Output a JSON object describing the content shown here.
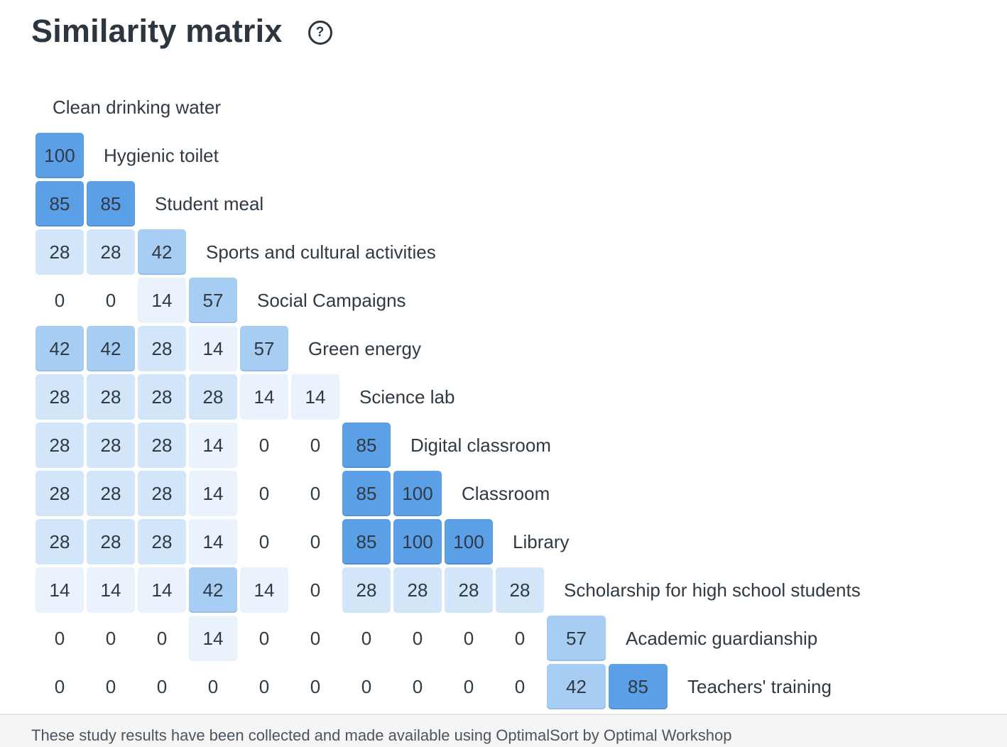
{
  "header": {
    "title": "Similarity matrix",
    "help_icon": "question-circle-icon"
  },
  "colors": {
    "high": "#5b9fe6",
    "mid": "#a8cdf3",
    "low": "#d3e5f8",
    "lowest": "#eaf2fc"
  },
  "chart_data": {
    "type": "heatmap",
    "title": "Similarity matrix",
    "shape": "lower-triangular",
    "unit": "percent",
    "labels": [
      "Clean drinking water",
      "Hygienic toilet",
      "Student meal",
      "Sports and cultural activities",
      "Social Campaigns",
      "Green energy",
      "Science lab",
      "Digital classroom",
      "Classroom",
      "Library",
      "Scholarship for high school students",
      "Academic guardianship",
      "Teachers' training"
    ],
    "rows": [
      [],
      [
        100
      ],
      [
        85,
        85
      ],
      [
        28,
        28,
        42
      ],
      [
        0,
        0,
        14,
        57
      ],
      [
        42,
        42,
        28,
        14,
        57
      ],
      [
        28,
        28,
        28,
        28,
        14,
        14
      ],
      [
        28,
        28,
        28,
        14,
        0,
        0,
        85
      ],
      [
        28,
        28,
        28,
        14,
        0,
        0,
        85,
        100
      ],
      [
        28,
        28,
        28,
        14,
        0,
        0,
        85,
        100,
        100
      ],
      [
        14,
        14,
        14,
        42,
        14,
        0,
        28,
        28,
        28,
        28
      ],
      [
        0,
        0,
        0,
        14,
        0,
        0,
        0,
        0,
        0,
        0,
        57
      ],
      [
        0,
        0,
        0,
        0,
        0,
        0,
        0,
        0,
        0,
        0,
        42,
        85
      ]
    ]
  },
  "footer": {
    "text": "These study results have been collected and made available using OptimalSort by Optimal Workshop"
  }
}
